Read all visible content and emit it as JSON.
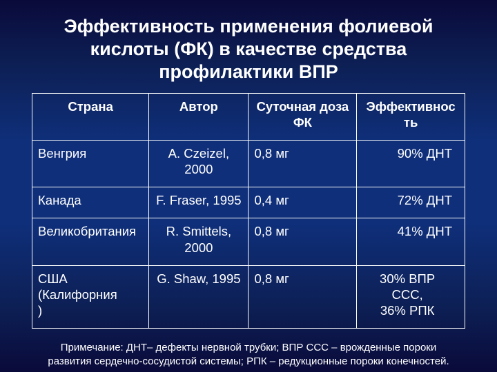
{
  "title": "Эффективность применения фолиевой\nкислоты (ФК) в качестве средства\nпрофилактики ВПР",
  "table": {
    "headers": [
      "Страна",
      "Автор",
      "Суточная доза\nФК",
      "Эффективнос\nть"
    ],
    "rows": [
      {
        "country": "Венгрия",
        "author": "A. Czeizel,\n2000",
        "dose": "0,8 мг",
        "eff": "90% ДНТ",
        "eff_multi": false
      },
      {
        "country": "Канада",
        "author": "F. Fraser, 1995",
        "dose": "0,4 мг",
        "eff": "72% ДНТ",
        "eff_multi": false
      },
      {
        "country": "Великобритания",
        "author": "R. Smittels,\n2000",
        "dose": "0,8 мг",
        "eff": "41% ДНТ",
        "eff_multi": false
      },
      {
        "country": "США\n  (Калифорния\n  )",
        "author": "G. Shaw, 1995",
        "dose": "0,8 мг",
        "eff": "30% ВПР\nССС,\n36% РПК",
        "eff_multi": true
      }
    ]
  },
  "footnote": "Примечание: ДНТ– дефекты нервной трубки; ВПР ССС – врожденные пороки\nразвития сердечно-сосудистой системы; РПК – редукционные  пороки конечностей.",
  "colors": {
    "text": "#ffffff",
    "border": "#ffffff",
    "bg_top": "#0a0a3a",
    "bg_mid": "#0f2f7a"
  },
  "font_family": "Arial",
  "title_fontsize_pt": 20,
  "cell_fontsize_pt": 14,
  "footnote_fontsize_pt": 11
}
